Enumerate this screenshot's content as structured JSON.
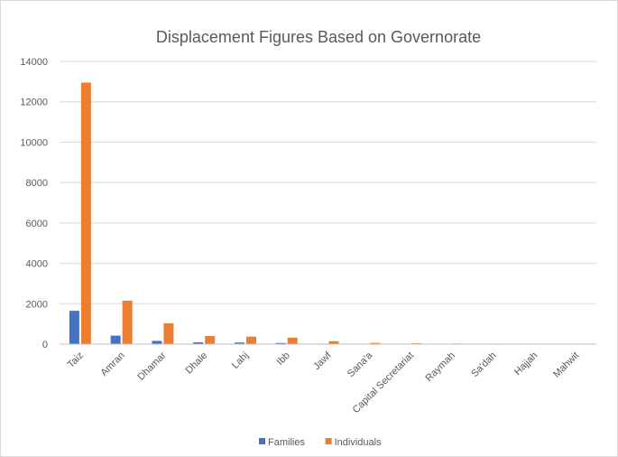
{
  "chart_data": {
    "type": "bar",
    "title": "Displacement Figures Based on Governorate",
    "xlabel": "",
    "ylabel": "",
    "categories": [
      "Taiz",
      "Amran",
      "Dhamar",
      "Dhale",
      "Lahj",
      "Ibb",
      "Jawf",
      "Sana'a",
      "Capital Secretariat",
      "Raymah",
      "Sa'dah",
      "Hajjah",
      "Mahwit"
    ],
    "series": [
      {
        "name": "Families",
        "color": "#4472c4",
        "values": [
          1650,
          420,
          160,
          90,
          80,
          55,
          25,
          12,
          8,
          6,
          5,
          4,
          3
        ]
      },
      {
        "name": "Individuals",
        "color": "#ed7d31",
        "values": [
          12950,
          2150,
          1030,
          400,
          370,
          320,
          140,
          60,
          40,
          30,
          25,
          20,
          15
        ]
      }
    ],
    "ylim": [
      0,
      14000
    ],
    "yticks": [
      0,
      2000,
      4000,
      6000,
      8000,
      10000,
      12000,
      14000
    ],
    "grid": true,
    "legend": "bottom"
  }
}
